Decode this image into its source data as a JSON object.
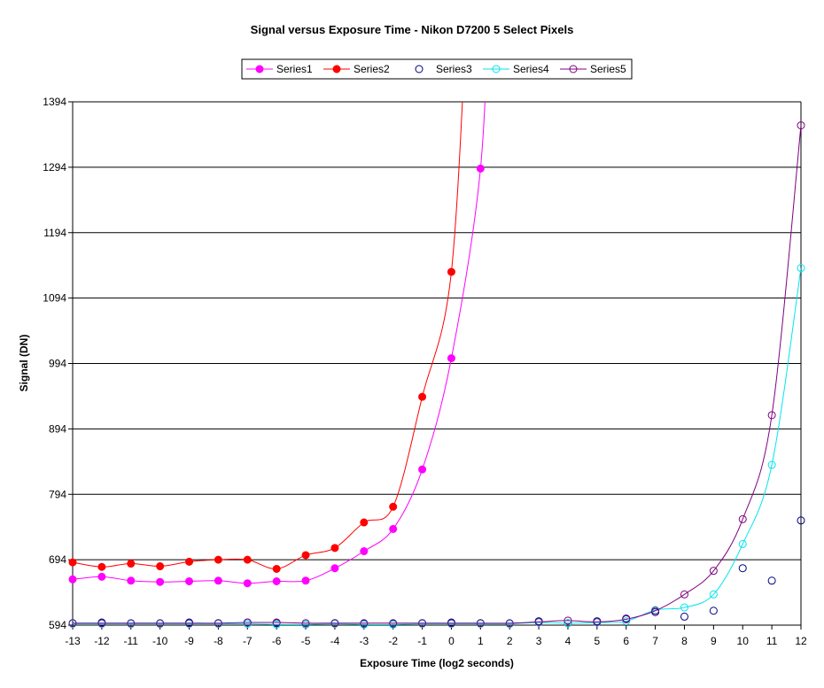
{
  "chart_data": {
    "type": "line",
    "title": "Signal versus Exposure Time - Nikon D7200 5 Select Pixels",
    "xlabel": "Exposure Time (log2 seconds)",
    "ylabel": "Signal (DN)",
    "xlim": [
      -13,
      12
    ],
    "ylim": [
      594,
      1394
    ],
    "xticks": [
      "-13",
      "-12",
      "-11",
      "-10",
      "-9",
      "-8",
      "-7",
      "-6",
      "-5",
      "-4",
      "-3",
      "-2",
      "-1",
      "0",
      "1",
      "2",
      "3",
      "4",
      "5",
      "6",
      "7",
      "8",
      "9",
      "10",
      "11",
      "12"
    ],
    "yticks": [
      "594",
      "694",
      "794",
      "894",
      "994",
      "1094",
      "1194",
      "1294",
      "1394"
    ],
    "grid": "horizontal",
    "legend_position": "top-center",
    "series": [
      {
        "name": "Series1",
        "color": "#FF00FF",
        "marker": "filled-circle",
        "line": true,
        "points": [
          [
            -13,
            664
          ],
          [
            -12,
            668
          ],
          [
            -11,
            662
          ],
          [
            -10,
            660
          ],
          [
            -9,
            661
          ],
          [
            -8,
            662
          ],
          [
            -7,
            658
          ],
          [
            -6,
            661
          ],
          [
            -5,
            662
          ],
          [
            -4,
            681
          ],
          [
            -3,
            707
          ],
          [
            -2,
            741
          ],
          [
            -1,
            832
          ],
          [
            0,
            1002
          ],
          [
            1,
            1292
          ]
        ]
      },
      {
        "name": "Series2",
        "color": "#FF0000",
        "marker": "filled-circle",
        "line": true,
        "points": [
          [
            -13,
            690
          ],
          [
            -12,
            683
          ],
          [
            -11,
            688
          ],
          [
            -10,
            684
          ],
          [
            -9,
            691
          ],
          [
            -8,
            694
          ],
          [
            -7,
            694
          ],
          [
            -6,
            680
          ],
          [
            -5,
            701
          ],
          [
            -4,
            712
          ],
          [
            -3,
            751
          ],
          [
            -2,
            775
          ],
          [
            -1,
            943
          ],
          [
            0,
            1134
          ]
        ]
      },
      {
        "name": "Series3",
        "color": "#000080",
        "marker": "open-circle",
        "line": false,
        "points": [
          [
            -13,
            597
          ],
          [
            -12,
            598
          ],
          [
            -11,
            596
          ],
          [
            -10,
            596
          ],
          [
            -9,
            598
          ],
          [
            -8,
            597
          ],
          [
            -7,
            598
          ],
          [
            -6,
            597
          ],
          [
            -5,
            595
          ],
          [
            -4,
            597
          ],
          [
            -3,
            596
          ],
          [
            -2,
            596
          ],
          [
            -1,
            597
          ],
          [
            0,
            598
          ],
          [
            1,
            597
          ],
          [
            2,
            596
          ],
          [
            3,
            600
          ],
          [
            4,
            597
          ],
          [
            5,
            600
          ],
          [
            6,
            604
          ],
          [
            7,
            614
          ],
          [
            8,
            607
          ],
          [
            9,
            616
          ],
          [
            10,
            681
          ],
          [
            11,
            662
          ],
          [
            12,
            754
          ]
        ]
      },
      {
        "name": "Series4",
        "color": "#00E5EE",
        "marker": "open-circle",
        "line": true,
        "points": [
          [
            -13,
            596
          ],
          [
            -12,
            596
          ],
          [
            -11,
            596
          ],
          [
            -10,
            596
          ],
          [
            -9,
            596
          ],
          [
            -8,
            596
          ],
          [
            -7,
            596
          ],
          [
            -6,
            595
          ],
          [
            -5,
            595
          ],
          [
            -4,
            596
          ],
          [
            -3,
            595
          ],
          [
            -2,
            595
          ],
          [
            -1,
            596
          ],
          [
            0,
            596
          ],
          [
            1,
            596
          ],
          [
            2,
            596
          ],
          [
            3,
            598
          ],
          [
            4,
            597
          ],
          [
            5,
            598
          ],
          [
            6,
            600
          ],
          [
            7,
            617
          ],
          [
            8,
            621
          ],
          [
            9,
            641
          ],
          [
            10,
            718
          ],
          [
            11,
            839
          ],
          [
            12,
            1140
          ]
        ]
      },
      {
        "name": "Series5",
        "color": "#800080",
        "marker": "open-circle",
        "line": true,
        "points": [
          [
            -13,
            597
          ],
          [
            -12,
            597
          ],
          [
            -11,
            597
          ],
          [
            -10,
            597
          ],
          [
            -9,
            597
          ],
          [
            -8,
            597
          ],
          [
            -7,
            598
          ],
          [
            -6,
            598
          ],
          [
            -5,
            597
          ],
          [
            -4,
            597
          ],
          [
            -3,
            597
          ],
          [
            -2,
            597
          ],
          [
            -1,
            597
          ],
          [
            0,
            597
          ],
          [
            1,
            597
          ],
          [
            2,
            597
          ],
          [
            3,
            599
          ],
          [
            4,
            601
          ],
          [
            5,
            599
          ],
          [
            6,
            603
          ],
          [
            7,
            616
          ],
          [
            8,
            641
          ],
          [
            9,
            677
          ],
          [
            10,
            756
          ],
          [
            11,
            915
          ],
          [
            12,
            1358
          ]
        ]
      }
    ]
  }
}
